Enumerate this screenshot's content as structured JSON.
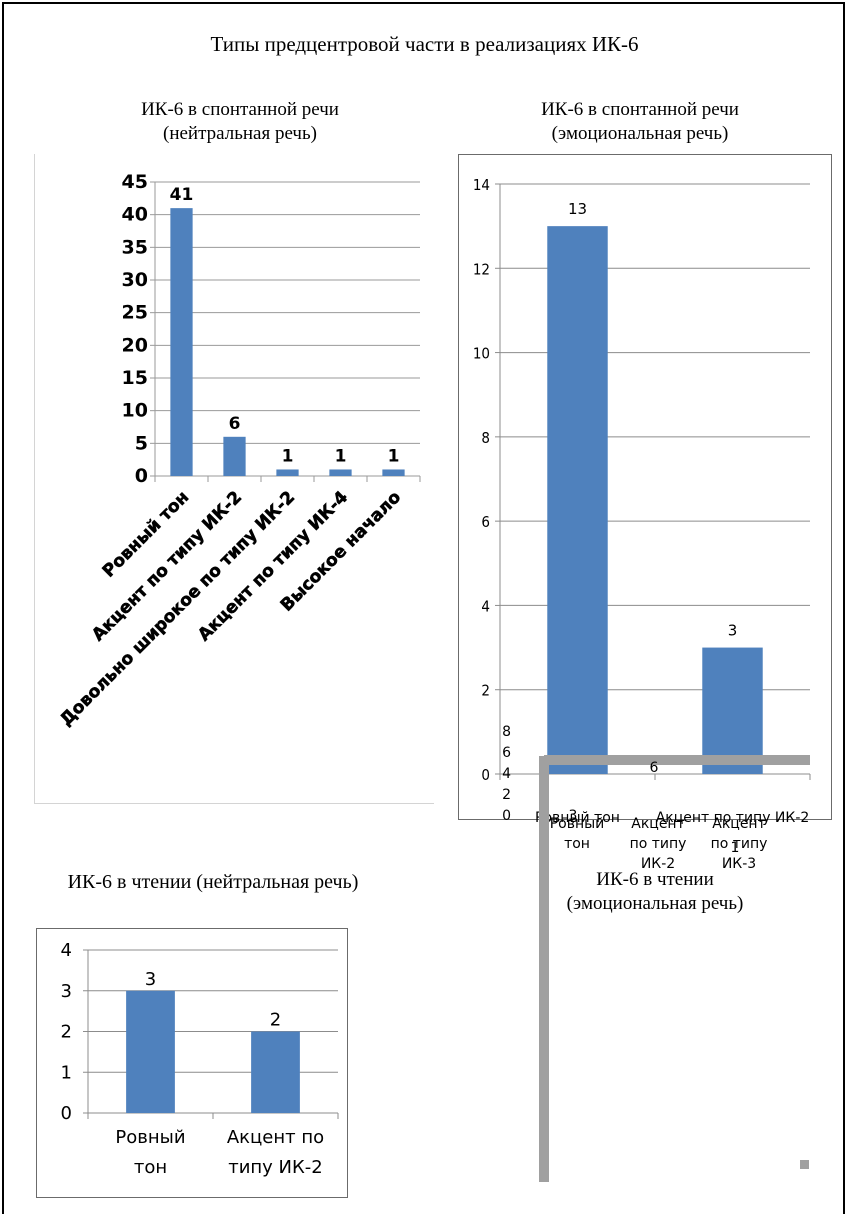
{
  "main_title": "Типы предцентровой части в реализациях ИК-6",
  "chart_data": [
    {
      "type": "bar",
      "title": [
        "ИК-6 в спонтанной речи",
        "(нейтральная речь)"
      ],
      "categories": [
        "Ровный тон",
        "Акцент по типу ИК-2",
        "Довольно широкое по типу ИК-2",
        "Акцент по типу ИК-4",
        "Высокое начало"
      ],
      "values": [
        41,
        6,
        1,
        1,
        1
      ],
      "data_labels": [
        "41",
        "6",
        "1",
        "1",
        "1"
      ],
      "yticks": [
        "0",
        "5",
        "10",
        "15",
        "20",
        "25",
        "30",
        "35",
        "40",
        "45"
      ],
      "ylim": [
        0,
        45
      ],
      "grid": true,
      "bar_color": "#4F81BD"
    },
    {
      "type": "bar",
      "title": [
        "ИК-6 в спонтанной речи",
        "(эмоциональная речь)"
      ],
      "categories": [
        "Ровный тон",
        "Акцент по типу ИК-2"
      ],
      "values": [
        13,
        3
      ],
      "data_labels": [
        "13",
        "3"
      ],
      "yticks": [
        "0",
        "2",
        "4",
        "6",
        "8",
        "10",
        "12",
        "14"
      ],
      "ylim": [
        0,
        14
      ],
      "grid": true,
      "bar_color": "#4F81BD"
    },
    {
      "type": "bar",
      "title": [
        "ИК-6 в чтении (нейтральная речь)"
      ],
      "categories": [
        [
          "Ровный",
          "тон"
        ],
        [
          "Акцент по",
          "типу ИК-2"
        ]
      ],
      "values": [
        3,
        2
      ],
      "data_labels": [
        "3",
        "2"
      ],
      "yticks": [
        "0",
        "1",
        "2",
        "3",
        "4"
      ],
      "ylim": [
        0,
        4
      ],
      "grid": true,
      "bar_color": "#4F81BD"
    },
    {
      "type": "bar",
      "title": [
        "ИК-6 в чтении",
        "(эмоциональная речь)"
      ],
      "categories": [
        [
          "Ровный",
          "тон"
        ],
        [
          "Акцент",
          "по типу",
          "ИК-2"
        ],
        [
          "Акцент",
          "по типу",
          "ИК-3"
        ]
      ],
      "values": [
        3,
        6,
        1
      ],
      "data_labels": [
        "3",
        "6",
        "1"
      ],
      "yticks": [
        "0",
        "2",
        "4",
        "6",
        "8"
      ],
      "ylim": [
        0,
        8
      ],
      "grid": false,
      "bar_color": "#A0A0A0"
    }
  ]
}
